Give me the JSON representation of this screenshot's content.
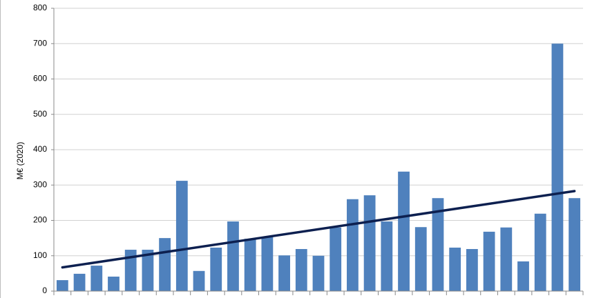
{
  "chart_data": {
    "type": "bar",
    "y_label": "M€ (2020)",
    "categories": [
      null,
      null,
      null,
      null,
      null,
      null,
      null,
      null,
      null,
      null,
      null,
      null,
      null,
      null,
      null,
      null,
      null,
      null,
      null,
      null,
      null,
      null,
      null,
      null,
      null,
      null,
      null,
      null,
      null,
      null,
      null
    ],
    "values": [
      31,
      49,
      72,
      41,
      117,
      117,
      150,
      312,
      57,
      123,
      197,
      148,
      154,
      101,
      119,
      100,
      180,
      260,
      271,
      197,
      338,
      181,
      263,
      123,
      119,
      168,
      180,
      84,
      219,
      700,
      263
    ],
    "color": "#4f81bd",
    "trendline": {
      "color": "#0d2050",
      "values": [
        67,
        283
      ]
    },
    "ylim": [
      0,
      800
    ],
    "yticks": [
      0,
      100,
      200,
      300,
      400,
      500,
      600,
      700,
      800
    ],
    "grid": true
  }
}
